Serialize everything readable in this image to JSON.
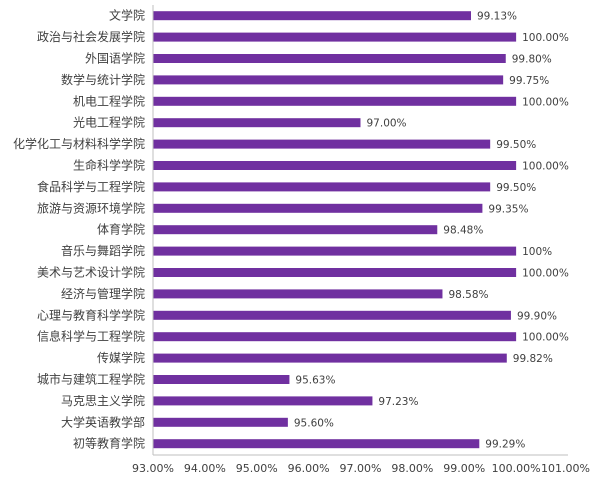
{
  "chart_data": {
    "type": "bar",
    "orientation": "horizontal",
    "bar_color": "#7030A0",
    "categories": [
      "文学院",
      "政治与社会发展学院",
      "外国语学院",
      "数学与统计学院",
      "机电工程学院",
      "光电工程学院",
      "化学化工与材料科学学院",
      "生命科学学院",
      "食品科学与工程学院",
      "旅游与资源环境学院",
      "体育学院",
      "音乐与舞蹈学院",
      "美术与艺术设计学院",
      "经济与管理学院",
      "心理与教育科学学院",
      "信息科学与工程学院",
      "传媒学院",
      "城市与建筑工程学院",
      "马克思主义学院",
      "大学英语教学部",
      "初等教育学院"
    ],
    "values": [
      99.13,
      100.0,
      99.8,
      99.75,
      100.0,
      97.0,
      99.5,
      100.0,
      99.5,
      99.35,
      98.48,
      100.0,
      100.0,
      98.58,
      99.9,
      100.0,
      99.82,
      95.63,
      97.23,
      95.6,
      99.29
    ],
    "value_labels": [
      "99.13%",
      "100.00%",
      "99.80%",
      "99.75%",
      "100.00%",
      "97.00%",
      "99.50%",
      "100.00%",
      "99.50%",
      "99.35%",
      "98.48%",
      "100%",
      "100.00%",
      "98.58%",
      "99.90%",
      "100.00%",
      "99.82%",
      "95.63%",
      "97.23%",
      "95.60%",
      "99.29%"
    ],
    "xlim": [
      93.0,
      101.0
    ],
    "x_ticks": [
      93,
      94,
      95,
      96,
      97,
      98,
      99,
      100,
      101
    ],
    "x_tick_labels": [
      "93.00%",
      "94.00%",
      "95.00%",
      "96.00%",
      "97.00%",
      "98.00%",
      "99.00%",
      "100.00%",
      "101.00%"
    ],
    "grid": false,
    "legend": "none"
  }
}
